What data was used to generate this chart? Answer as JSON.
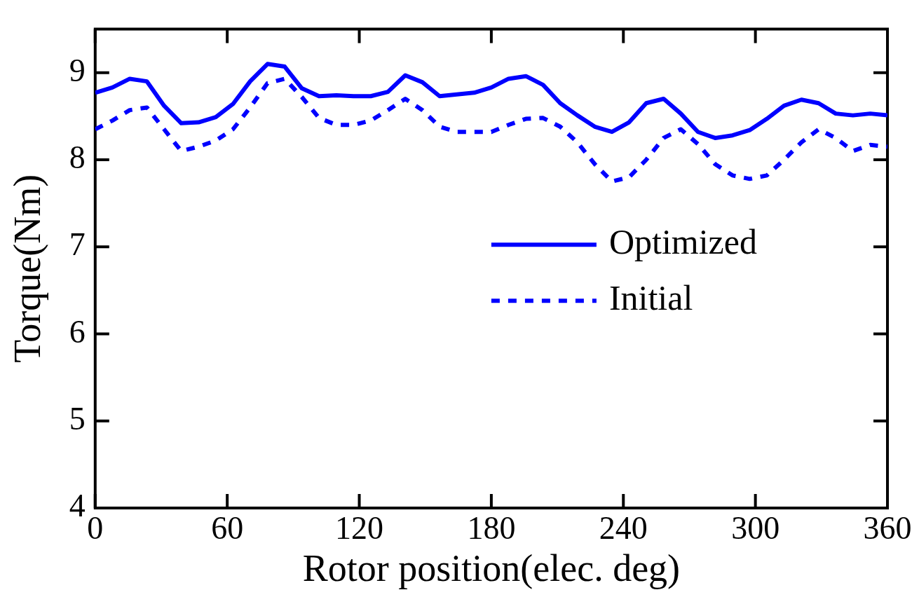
{
  "chart_data": {
    "type": "line",
    "xlabel": "Rotor position(elec. deg)",
    "ylabel": "Torque(Nm)",
    "x": [
      0,
      7.8,
      15.7,
      23.5,
      31.3,
      39.1,
      47,
      54.8,
      62.6,
      70.4,
      78.3,
      86.1,
      93.9,
      101.7,
      109.6,
      117.4,
      125.2,
      133,
      140.9,
      148.7,
      156.5,
      164.3,
      172.2,
      180,
      187.8,
      195.7,
      203.5,
      211.3,
      219.1,
      227,
      234.8,
      242.6,
      250.4,
      258.3,
      266.1,
      273.9,
      281.7,
      289.6,
      297.4,
      305.2,
      313,
      320.9,
      328.7,
      336.5,
      344.3,
      352.2,
      360
    ],
    "series": [
      {
        "name": "Optimized",
        "color": "#0000ff",
        "line_style": "solid",
        "values": [
          8.77,
          8.83,
          8.93,
          8.9,
          8.62,
          8.42,
          8.43,
          8.49,
          8.64,
          8.9,
          9.1,
          9.07,
          8.82,
          8.73,
          8.74,
          8.73,
          8.73,
          8.78,
          8.97,
          8.89,
          8.73,
          8.75,
          8.77,
          8.83,
          8.93,
          8.96,
          8.86,
          8.65,
          8.51,
          8.38,
          8.32,
          8.43,
          8.65,
          8.7,
          8.53,
          8.32,
          8.25,
          8.28,
          8.34,
          8.47,
          8.62,
          8.69,
          8.65,
          8.53,
          8.51,
          8.53,
          8.51
        ]
      },
      {
        "name": "Initial",
        "color": "#0000ff",
        "line_style": "dotted",
        "values": [
          8.35,
          8.45,
          8.57,
          8.6,
          8.35,
          8.1,
          8.15,
          8.22,
          8.35,
          8.6,
          8.88,
          8.93,
          8.72,
          8.48,
          8.4,
          8.4,
          8.45,
          8.57,
          8.7,
          8.57,
          8.38,
          8.32,
          8.32,
          8.32,
          8.4,
          8.47,
          8.48,
          8.38,
          8.2,
          7.95,
          7.75,
          7.8,
          8,
          8.25,
          8.35,
          8.18,
          7.95,
          7.82,
          7.78,
          7.82,
          8,
          8.2,
          8.35,
          8.25,
          8.1,
          8.17,
          8.15
        ]
      }
    ],
    "xlim": [
      0,
      360
    ],
    "xticks": [
      0,
      60,
      120,
      180,
      240,
      300,
      360
    ],
    "ylim": [
      4,
      9.5
    ],
    "yticks": [
      4,
      5,
      6,
      7,
      8,
      9
    ],
    "grid": false,
    "legend": "right",
    "marker": "none"
  }
}
